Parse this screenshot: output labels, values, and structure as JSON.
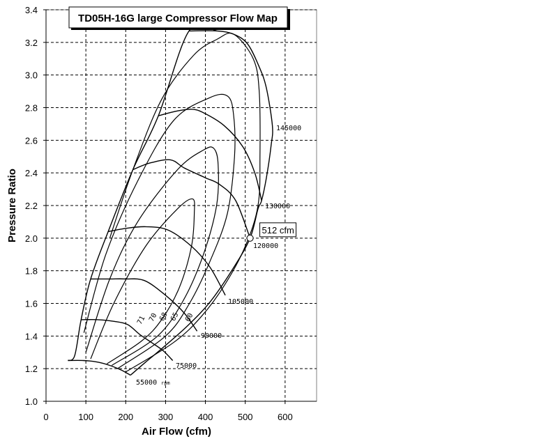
{
  "chart_data": {
    "type": "line",
    "title": "TD05H-16G large Compressor Flow Map",
    "xlabel": "Air Flow (cfm)",
    "ylabel": "Pressure Ratio",
    "xlim": [
      0,
      680
    ],
    "ylim": [
      1.0,
      3.4
    ],
    "xticks": [
      "0",
      "100",
      "200",
      "300",
      "400",
      "500",
      "600"
    ],
    "yticks": [
      "1.0",
      "1.2",
      "1.4",
      "1.6",
      "1.8",
      "2.0",
      "2.2",
      "2.4",
      "2.6",
      "2.8",
      "3.0",
      "3.2",
      "3.4"
    ],
    "grid": true,
    "grid_style": "dashed",
    "surge_line": [
      [
        55,
        1.25
      ],
      [
        72,
        1.28
      ],
      [
        88,
        1.5
      ],
      [
        112,
        1.75
      ],
      [
        156,
        2.04
      ],
      [
        218,
        2.42
      ],
      [
        282,
        2.75
      ],
      [
        359,
        3.27
      ],
      [
        429,
        3.27
      ]
    ],
    "speed_lines": [
      {
        "label": "55000 rpm",
        "points": [
          [
            55,
            1.25
          ],
          [
            94,
            1.25
          ],
          [
            130,
            1.24
          ],
          [
            160,
            1.22
          ],
          [
            190,
            1.19
          ],
          [
            212,
            1.16
          ]
        ]
      },
      {
        "label": "75000",
        "points": [
          [
            88,
            1.5
          ],
          [
            130,
            1.5
          ],
          [
            171,
            1.49
          ],
          [
            205,
            1.47
          ],
          [
            235,
            1.41
          ],
          [
            265,
            1.36
          ],
          [
            294,
            1.31
          ],
          [
            318,
            1.25
          ]
        ]
      },
      {
        "label": "90000",
        "points": [
          [
            112,
            1.75
          ],
          [
            160,
            1.75
          ],
          [
            200,
            1.75
          ],
          [
            247,
            1.74
          ],
          [
            300,
            1.65
          ],
          [
            347,
            1.54
          ],
          [
            379,
            1.43
          ]
        ]
      },
      {
        "label": "105000",
        "points": [
          [
            156,
            2.04
          ],
          [
            200,
            2.06
          ],
          [
            250,
            2.07
          ],
          [
            306,
            2.05
          ],
          [
            365,
            1.95
          ],
          [
            412,
            1.82
          ],
          [
            450,
            1.65
          ]
        ]
      },
      {
        "label": "120000",
        "points": [
          [
            218,
            2.42
          ],
          [
            260,
            2.46
          ],
          [
            312,
            2.48
          ],
          [
            347,
            2.43
          ],
          [
            400,
            2.37
          ],
          [
            435,
            2.33
          ],
          [
            476,
            2.23
          ],
          [
            512,
            2.0
          ]
        ]
      },
      {
        "label": "130000",
        "points": [
          [
            282,
            2.75
          ],
          [
            330,
            2.78
          ],
          [
            365,
            2.79
          ],
          [
            394,
            2.77
          ],
          [
            447,
            2.69
          ],
          [
            494,
            2.56
          ],
          [
            524,
            2.4
          ],
          [
            541,
            2.23
          ]
        ]
      },
      {
        "label": "145000",
        "points": [
          [
            359,
            3.27
          ],
          [
            429,
            3.27
          ],
          [
            471,
            3.25
          ],
          [
            506,
            3.19
          ],
          [
            535,
            3.05
          ],
          [
            553,
            2.92
          ],
          [
            568,
            2.69
          ],
          [
            565,
            2.57
          ],
          [
            553,
            2.37
          ],
          [
            541,
            2.23
          ],
          [
            532,
            2.18
          ],
          [
            512,
            2.0
          ],
          [
            471,
            1.82
          ],
          [
            412,
            1.61
          ],
          [
            354,
            1.46
          ],
          [
            294,
            1.33
          ],
          [
            250,
            1.24
          ],
          [
            212,
            1.16
          ]
        ]
      }
    ],
    "efficiency_islands": [
      {
        "label": "71",
        "points": [
          [
            112,
            1.26
          ],
          [
            170,
            1.6
          ],
          [
            250,
            1.95
          ],
          [
            330,
            2.18
          ],
          [
            368,
            2.24
          ],
          [
            372,
            2.15
          ],
          [
            365,
            1.95
          ],
          [
            335,
            1.7
          ],
          [
            290,
            1.5
          ],
          [
            240,
            1.37
          ],
          [
            153,
            1.23
          ]
        ]
      },
      {
        "label": "70",
        "points": [
          [
            100,
            1.3
          ],
          [
            160,
            1.75
          ],
          [
            230,
            2.1
          ],
          [
            330,
            2.42
          ],
          [
            395,
            2.54
          ],
          [
            421,
            2.55
          ],
          [
            432,
            2.45
          ],
          [
            428,
            2.2
          ],
          [
            395,
            1.9
          ],
          [
            345,
            1.62
          ],
          [
            280,
            1.4
          ],
          [
            165,
            1.22
          ]
        ]
      },
      {
        "label": "68",
        "points": [
          [
            95,
            1.42
          ],
          [
            150,
            1.9
          ],
          [
            230,
            2.35
          ],
          [
            320,
            2.72
          ],
          [
            410,
            2.86
          ],
          [
            456,
            2.87
          ],
          [
            471,
            2.75
          ],
          [
            473,
            2.5
          ],
          [
            455,
            2.15
          ],
          [
            410,
            1.85
          ],
          [
            360,
            1.6
          ],
          [
            300,
            1.4
          ],
          [
            179,
            1.2
          ]
        ]
      },
      {
        "label": "65",
        "points": [
          [
            160,
            2.0
          ],
          [
            218,
            2.42
          ],
          [
            290,
            2.85
          ],
          [
            370,
            3.12
          ],
          [
            430,
            3.22
          ],
          [
            471,
            3.25
          ],
          [
            520,
            3.1
          ],
          [
            535,
            2.9
          ],
          [
            537,
            2.5
          ],
          [
            532,
            2.2
          ],
          [
            500,
            1.95
          ],
          [
            450,
            1.72
          ],
          [
            390,
            1.52
          ],
          [
            320,
            1.36
          ],
          [
            200,
            1.18
          ]
        ]
      },
      {
        "label": "60",
        "points": []
      }
    ],
    "annotation": {
      "label": "512 cfm",
      "x": 512,
      "y": 2.0
    }
  }
}
